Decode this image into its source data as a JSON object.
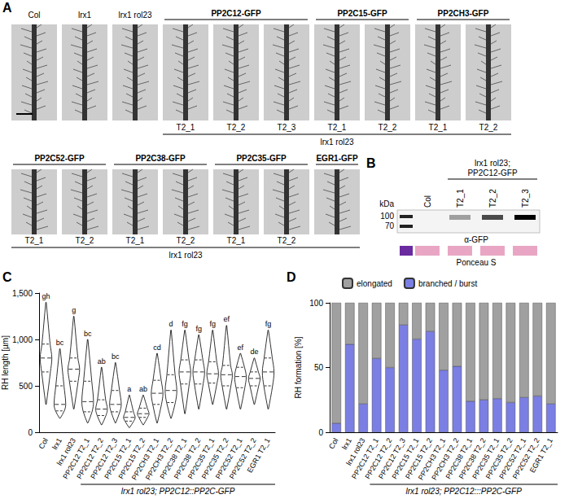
{
  "panel_a": {
    "letter": "A",
    "rows": [
      {
        "singles": [
          "Col",
          "lrx1",
          "lrx1 rol23"
        ],
        "groups": [
          {
            "head": "PP2C12-GFP",
            "lines": [
              "T2_1",
              "T2_2",
              "T2_3"
            ]
          },
          {
            "head": "PP2C15-GFP",
            "lines": [
              "T2_1",
              "T2_2"
            ]
          },
          {
            "head": "PP2CH3-GFP",
            "lines": [
              "T2_1",
              "T2_2"
            ]
          }
        ],
        "bracket": "lrx1 rol23"
      },
      {
        "singles": [],
        "groups": [
          {
            "head": "PP2C52-GFP",
            "lines": [
              "T2_1",
              "T2_2"
            ]
          },
          {
            "head": "PP2C38-GFP",
            "lines": [
              "T2_1",
              "T2_2"
            ]
          },
          {
            "head": "PP2C35-GFP",
            "lines": [
              "T2_1",
              "T2_2"
            ]
          },
          {
            "head": "EGR1-GFP",
            "lines": [
              null
            ]
          }
        ],
        "bracket": "lrx1 rol23"
      }
    ]
  },
  "panel_b": {
    "letter": "B",
    "unit": "kDa",
    "markers": [
      100,
      70
    ],
    "genotype": "lrx1 rol23;",
    "construct": "PP2C12-GFP",
    "lanes": [
      "Col",
      "T2_1",
      "T2_2",
      "T2_3"
    ],
    "signal": [
      0,
      0.35,
      0.7,
      1
    ],
    "antibody": "α-GFP",
    "stain": "Ponceau S"
  },
  "chart_data": [
    {
      "panel": "C",
      "type": "violin",
      "categories": [
        "Col",
        "lrx1",
        "lrx1 rol23",
        "PP2C12 T2_1",
        "PP2C12 T2_2",
        "PP2C12 T2_3",
        "PP2C15 T2_1",
        "PP2C15 T2_2",
        "PP2CH3 T2_1",
        "PP2CH3 T2_2",
        "PP2C38 T2_1",
        "PP2C38 T2_2",
        "PP2C35 T2_1",
        "PP2C35 T2_2",
        "PP2C52 T2_1",
        "PP2C52 T2_2",
        "EGR1 T2_1"
      ],
      "min": [
        300,
        150,
        250,
        100,
        80,
        100,
        50,
        80,
        100,
        150,
        200,
        250,
        300,
        250,
        250,
        300,
        250
      ],
      "q1": [
        650,
        230,
        550,
        220,
        180,
        220,
        120,
        160,
        300,
        320,
        520,
        520,
        530,
        500,
        480,
        500,
        500
      ],
      "median": [
        800,
        300,
        680,
        330,
        250,
        300,
        160,
        200,
        420,
        450,
        650,
        650,
        630,
        620,
        600,
        580,
        650
      ],
      "q3": [
        950,
        500,
        800,
        550,
        350,
        450,
        220,
        260,
        560,
        620,
        780,
        780,
        760,
        720,
        700,
        650,
        800
      ],
      "max": [
        1400,
        900,
        1250,
        1000,
        700,
        750,
        400,
        400,
        850,
        1100,
        1100,
        1050,
        1100,
        1150,
        850,
        800,
        1100
      ],
      "letters": [
        "gh",
        "bc",
        "g",
        "bc",
        "ab",
        "bc",
        "a",
        "ab",
        "cd",
        "d",
        "fg",
        "fg",
        "fg",
        "ef",
        "ef",
        "de",
        "fg"
      ],
      "ylabel": "RH length [µm]",
      "ylim": [
        0,
        1500
      ],
      "yticks": [
        0,
        500,
        1000,
        1500
      ],
      "grid": false,
      "annotations": [
        {
          "text": "lrx1 rol23; PP2C12::PP2C-GFP",
          "from": "PP2C12 T2_1",
          "to": "EGR1 T2_1"
        }
      ]
    },
    {
      "panel": "D",
      "type": "bar",
      "stacked": true,
      "categories": [
        "Col",
        "lrx1",
        "lrx1 rol23",
        "PP2C12 T2_1",
        "PP2C12 T2_2",
        "PP2C12 T2_3",
        "PP2C15 T2_1",
        "PP2C15 T2_2",
        "PP2CH3 T2_1",
        "PP2CH3 T2_2",
        "PP2C38 T2_1",
        "PP2C38 T2_2",
        "PP2C35 T2_1",
        "PP2C35 T2_2",
        "PP2C52 T2_1",
        "PP2C52 T2_2",
        "EGR1 T2_1"
      ],
      "series": [
        {
          "name": "branched / burst",
          "color": "#7b7fe3",
          "values": [
            7,
            68,
            22,
            57,
            50,
            83,
            72,
            78,
            48,
            51,
            24,
            25,
            26,
            23,
            27,
            28,
            22
          ]
        },
        {
          "name": "elongated",
          "color": "#a0a0a0",
          "values": [
            93,
            32,
            78,
            43,
            50,
            17,
            28,
            22,
            52,
            49,
            76,
            75,
            74,
            77,
            73,
            72,
            78
          ]
        }
      ],
      "ylabel": "RH formation [%]",
      "ylim": [
        0,
        100
      ],
      "yticks": [
        0,
        50,
        100
      ],
      "grid": false,
      "legend": "top",
      "annotations": [
        {
          "text": "lrx1 rol23; PP2C12:::PP2C-GFP",
          "from": "PP2C12 T2_1",
          "to": "EGR1 T2_1"
        }
      ]
    }
  ]
}
